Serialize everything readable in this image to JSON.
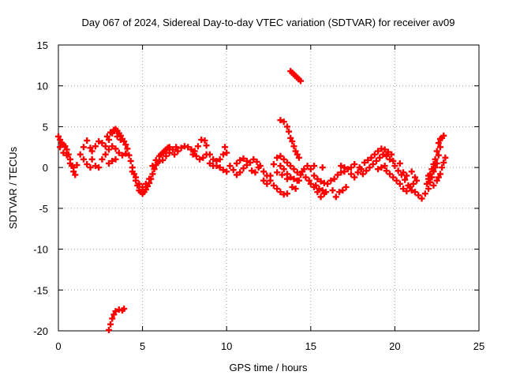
{
  "chart_data": {
    "type": "scatter",
    "title": "Day 067 of 2024, Sidereal Day-to-day VTEC variation (SDTVAR) for receiver av09",
    "xlabel": "GPS time / hours",
    "ylabel": "SDTVAR / TECUs",
    "xlim": [
      0,
      25
    ],
    "ylim": [
      -20,
      15
    ],
    "xticks": [
      "0",
      "5",
      "10",
      "15",
      "20",
      "25"
    ],
    "yticks": [
      "15",
      "10",
      "5",
      "0",
      "-5",
      "-10",
      "-15",
      "-20"
    ],
    "grid": true,
    "marker": "plus",
    "series": [
      {
        "name": "SDTVAR",
        "color": "#ff0000",
        "points": [
          [
            0.0,
            3.8
          ],
          [
            0.1,
            3.4
          ],
          [
            0.2,
            3.0
          ],
          [
            0.3,
            2.8
          ],
          [
            0.4,
            2.6
          ],
          [
            0.5,
            2.2
          ],
          [
            0.6,
            1.6
          ],
          [
            0.7,
            1.0
          ],
          [
            0.8,
            0.2
          ],
          [
            0.9,
            -0.5
          ],
          [
            1.0,
            -0.9
          ],
          [
            0.1,
            2.5
          ],
          [
            0.3,
            1.8
          ],
          [
            0.5,
            1.5
          ],
          [
            0.7,
            0.5
          ],
          [
            0.9,
            0.0
          ],
          [
            1.1,
            0.3
          ],
          [
            1.3,
            1.6
          ],
          [
            1.5,
            2.5
          ],
          [
            1.7,
            3.3
          ],
          [
            1.9,
            2.4
          ],
          [
            2.0,
            1.0
          ],
          [
            2.2,
            0.2
          ],
          [
            2.4,
            0.0
          ],
          [
            1.5,
            1.0
          ],
          [
            1.7,
            0.4
          ],
          [
            1.9,
            0.0
          ],
          [
            2.0,
            2.0
          ],
          [
            2.2,
            2.6
          ],
          [
            2.4,
            3.2
          ],
          [
            2.6,
            3.0
          ],
          [
            2.8,
            2.6
          ],
          [
            3.0,
            3.4
          ],
          [
            3.2,
            4.2
          ],
          [
            3.3,
            4.6
          ],
          [
            3.4,
            4.7
          ],
          [
            3.5,
            4.5
          ],
          [
            3.6,
            4.2
          ],
          [
            3.7,
            3.9
          ],
          [
            3.8,
            3.5
          ],
          [
            3.9,
            3.2
          ],
          [
            4.0,
            2.8
          ],
          [
            4.1,
            2.3
          ],
          [
            4.2,
            1.5
          ],
          [
            2.6,
            1.0
          ],
          [
            2.8,
            1.6
          ],
          [
            3.0,
            2.2
          ],
          [
            3.2,
            2.6
          ],
          [
            3.4,
            2.3
          ],
          [
            3.6,
            1.8
          ],
          [
            3.8,
            1.5
          ],
          [
            4.0,
            1.7
          ],
          [
            3.0,
            0.5
          ],
          [
            3.2,
            0.8
          ],
          [
            3.4,
            1.0
          ],
          [
            2.9,
            3.8
          ],
          [
            3.1,
            4.3
          ],
          [
            3.5,
            3.8
          ],
          [
            3.7,
            3.4
          ],
          [
            4.3,
            0.8
          ],
          [
            4.4,
            0.0
          ],
          [
            4.5,
            -0.8
          ],
          [
            4.6,
            -1.6
          ],
          [
            4.7,
            -2.2
          ],
          [
            4.8,
            -2.8
          ],
          [
            4.9,
            -3.0
          ],
          [
            5.0,
            -3.2
          ],
          [
            5.1,
            -3.0
          ],
          [
            5.2,
            -2.7
          ],
          [
            5.3,
            -2.3
          ],
          [
            5.4,
            -1.9
          ],
          [
            5.5,
            -1.4
          ],
          [
            4.4,
            -0.5
          ],
          [
            4.6,
            -1.2
          ],
          [
            4.8,
            -2.0
          ],
          [
            5.0,
            -2.4
          ],
          [
            5.2,
            -2.0
          ],
          [
            5.4,
            -1.4
          ],
          [
            5.6,
            -0.8
          ],
          [
            5.7,
            -0.2
          ],
          [
            5.8,
            0.3
          ],
          [
            5.9,
            0.6
          ],
          [
            6.0,
            0.8
          ],
          [
            5.6,
            0.2
          ],
          [
            5.8,
            0.9
          ],
          [
            6.0,
            1.4
          ],
          [
            6.1,
            1.6
          ],
          [
            6.2,
            1.8
          ],
          [
            6.3,
            2.0
          ],
          [
            6.4,
            2.2
          ],
          [
            6.5,
            2.4
          ],
          [
            6.6,
            2.5
          ],
          [
            6.2,
            0.9
          ],
          [
            6.4,
            1.4
          ],
          [
            6.6,
            1.8
          ],
          [
            6.8,
            2.2
          ],
          [
            7.0,
            2.5
          ],
          [
            6.9,
            1.6
          ],
          [
            7.1,
            2.0
          ],
          [
            7.3,
            2.4
          ],
          [
            7.5,
            2.6
          ],
          [
            7.7,
            2.5
          ],
          [
            7.9,
            2.2
          ],
          [
            8.1,
            2.0
          ],
          [
            8.3,
            2.6
          ],
          [
            8.5,
            3.4
          ],
          [
            8.7,
            3.3
          ],
          [
            8.8,
            2.7
          ],
          [
            9.0,
            1.6
          ],
          [
            9.2,
            1.0
          ],
          [
            9.4,
            0.8
          ],
          [
            9.6,
            0.0
          ],
          [
            9.8,
            -0.3
          ],
          [
            10.0,
            -0.5
          ],
          [
            8.0,
            1.6
          ],
          [
            8.2,
            1.4
          ],
          [
            8.4,
            1.0
          ],
          [
            8.6,
            1.2
          ],
          [
            8.8,
            1.6
          ],
          [
            9.0,
            0.5
          ],
          [
            9.2,
            0.2
          ],
          [
            9.4,
            0.2
          ],
          [
            9.6,
            1.0
          ],
          [
            9.8,
            1.6
          ],
          [
            9.9,
            2.5
          ],
          [
            10.0,
            1.8
          ],
          [
            10.2,
            0.2
          ],
          [
            10.4,
            -0.3
          ],
          [
            10.6,
            -0.9
          ],
          [
            10.8,
            -0.6
          ],
          [
            11.0,
            -0.1
          ],
          [
            11.2,
            0.3
          ],
          [
            11.4,
            0.6
          ],
          [
            11.6,
            1.0
          ],
          [
            11.8,
            0.7
          ],
          [
            12.0,
            0.2
          ],
          [
            12.2,
            -0.5
          ],
          [
            12.4,
            -1.0
          ],
          [
            12.6,
            -1.6
          ],
          [
            12.8,
            -2.2
          ],
          [
            13.0,
            -2.6
          ],
          [
            13.2,
            -3.0
          ],
          [
            13.4,
            -3.3
          ],
          [
            13.6,
            -3.2
          ],
          [
            10.6,
            0.5
          ],
          [
            10.8,
            0.9
          ],
          [
            11.0,
            1.1
          ],
          [
            11.2,
            0.8
          ],
          [
            11.5,
            -0.4
          ],
          [
            11.7,
            -0.6
          ],
          [
            11.9,
            0.0
          ],
          [
            12.2,
            -1.6
          ],
          [
            12.4,
            -2.0
          ],
          [
            12.6,
            -1.0
          ],
          [
            12.8,
            0.4
          ],
          [
            13.0,
            1.2
          ],
          [
            13.2,
            1.4
          ],
          [
            13.4,
            1.0
          ],
          [
            13.6,
            0.6
          ],
          [
            13.8,
            0.2
          ],
          [
            14.0,
            -0.2
          ],
          [
            14.2,
            -0.6
          ],
          [
            14.4,
            -0.9
          ],
          [
            13.2,
            0.2
          ],
          [
            13.4,
            -0.2
          ],
          [
            13.6,
            -0.8
          ],
          [
            13.8,
            -1.2
          ],
          [
            14.0,
            -1.4
          ],
          [
            14.2,
            -1.6
          ],
          [
            13.0,
            -0.6
          ],
          [
            13.3,
            -0.9
          ],
          [
            13.6,
            -1.4
          ],
          [
            13.9,
            -2.4
          ],
          [
            14.1,
            -2.6
          ],
          [
            14.3,
            -1.6
          ],
          [
            14.5,
            -0.5
          ],
          [
            14.7,
            -1.2
          ],
          [
            14.9,
            -1.6
          ],
          [
            15.0,
            -2.0
          ],
          [
            15.2,
            -2.4
          ],
          [
            15.4,
            -3.0
          ],
          [
            15.6,
            -3.6
          ],
          [
            15.8,
            -3.2
          ],
          [
            14.6,
            -0.2
          ],
          [
            14.8,
            0.2
          ],
          [
            15.0,
            -0.2
          ],
          [
            15.2,
            -1.0
          ],
          [
            15.4,
            -1.4
          ],
          [
            15.6,
            -1.7
          ],
          [
            15.8,
            -1.9
          ],
          [
            16.0,
            -2.0
          ],
          [
            15.3,
            -2.2
          ],
          [
            15.5,
            -2.6
          ],
          [
            15.7,
            -2.8
          ],
          [
            15.9,
            -3.0
          ],
          [
            15.2,
            0.2
          ],
          [
            15.7,
            0.0
          ],
          [
            16.2,
            -1.6
          ],
          [
            16.4,
            -1.4
          ],
          [
            16.6,
            -0.9
          ],
          [
            16.8,
            -0.6
          ],
          [
            17.0,
            -0.5
          ],
          [
            16.3,
            -2.8
          ],
          [
            16.5,
            -3.6
          ],
          [
            16.7,
            -3.0
          ],
          [
            16.9,
            -2.8
          ],
          [
            17.1,
            -2.4
          ],
          [
            16.8,
            0.2
          ],
          [
            17.0,
            0.0
          ],
          [
            17.2,
            -0.2
          ],
          [
            17.4,
            -0.8
          ],
          [
            17.6,
            -1.2
          ],
          [
            17.8,
            -0.6
          ],
          [
            18.0,
            -0.2
          ],
          [
            17.4,
            0.0
          ],
          [
            17.6,
            0.4
          ],
          [
            17.9,
            0.0
          ],
          [
            18.1,
            -0.8
          ],
          [
            18.3,
            -0.4
          ],
          [
            18.5,
            0.0
          ],
          [
            18.7,
            0.4
          ],
          [
            18.9,
            0.8
          ],
          [
            19.1,
            1.2
          ],
          [
            19.3,
            1.6
          ],
          [
            19.5,
            1.4
          ],
          [
            19.7,
            1.0
          ],
          [
            18.2,
            0.6
          ],
          [
            18.4,
            0.9
          ],
          [
            18.6,
            1.2
          ],
          [
            18.8,
            1.6
          ],
          [
            19.0,
            2.0
          ],
          [
            19.2,
            2.3
          ],
          [
            19.4,
            2.2
          ],
          [
            19.6,
            1.9
          ],
          [
            19.8,
            1.6
          ],
          [
            19.9,
            0.8
          ],
          [
            20.0,
            0.2
          ],
          [
            20.2,
            -0.4
          ],
          [
            20.4,
            -0.9
          ],
          [
            20.6,
            -1.5
          ],
          [
            20.8,
            -2.2
          ],
          [
            21.0,
            -2.8
          ],
          [
            21.2,
            -3.0
          ],
          [
            21.4,
            -3.4
          ],
          [
            21.6,
            -3.8
          ],
          [
            21.8,
            -3.2
          ],
          [
            19.5,
            -0.4
          ],
          [
            19.7,
            -0.8
          ],
          [
            19.9,
            -1.2
          ],
          [
            20.1,
            -1.6
          ],
          [
            20.3,
            -2.0
          ],
          [
            20.5,
            -2.6
          ],
          [
            20.7,
            -2.9
          ],
          [
            20.9,
            -2.4
          ],
          [
            21.1,
            -2.0
          ],
          [
            21.3,
            -1.6
          ],
          [
            19.0,
            -0.2
          ],
          [
            19.2,
            0.0
          ],
          [
            19.4,
            0.2
          ],
          [
            20.3,
            0.5
          ],
          [
            20.5,
            -0.6
          ],
          [
            20.7,
            -1.0
          ],
          [
            21.0,
            -0.5
          ],
          [
            21.2,
            -1.2
          ],
          [
            22.0,
            -2.6
          ],
          [
            22.1,
            -1.8
          ],
          [
            22.2,
            -1.2
          ],
          [
            22.3,
            -0.5
          ],
          [
            22.4,
            0.0
          ],
          [
            22.5,
            0.5
          ],
          [
            22.6,
            1.5
          ],
          [
            22.7,
            2.5
          ],
          [
            22.8,
            3.6
          ],
          [
            22.9,
            3.9
          ],
          [
            22.0,
            -1.4
          ],
          [
            22.1,
            -0.8
          ],
          [
            22.2,
            -0.2
          ],
          [
            22.3,
            0.4
          ],
          [
            22.4,
            1.0
          ],
          [
            22.5,
            2.0
          ],
          [
            22.6,
            3.0
          ],
          [
            22.7,
            3.5
          ],
          [
            22.3,
            -2.2
          ],
          [
            22.5,
            -1.6
          ],
          [
            22.7,
            -0.8
          ],
          [
            22.8,
            0.0
          ],
          [
            22.9,
            0.6
          ],
          [
            23.0,
            1.2
          ],
          [
            21.9,
            -2.0
          ],
          [
            22.0,
            -1.0
          ],
          [
            22.6,
            -1.2
          ],
          [
            13.2,
            5.8
          ],
          [
            13.4,
            5.6
          ],
          [
            13.6,
            5.0
          ],
          [
            13.7,
            4.4
          ],
          [
            13.8,
            3.6
          ],
          [
            13.9,
            3.2
          ],
          [
            14.0,
            2.6
          ],
          [
            14.1,
            2.0
          ],
          [
            14.2,
            1.6
          ],
          [
            14.3,
            1.2
          ],
          [
            13.8,
            11.8
          ],
          [
            13.9,
            11.6
          ],
          [
            14.0,
            11.4
          ],
          [
            14.1,
            11.2
          ],
          [
            14.2,
            11.0
          ],
          [
            14.3,
            10.8
          ],
          [
            14.4,
            10.6
          ],
          [
            3.0,
            -19.9
          ],
          [
            3.1,
            -19.2
          ],
          [
            3.2,
            -18.5
          ],
          [
            3.3,
            -18.0
          ],
          [
            3.4,
            -17.6
          ],
          [
            3.6,
            -17.4
          ],
          [
            3.8,
            -17.5
          ],
          [
            3.9,
            -17.3
          ]
        ]
      }
    ]
  }
}
